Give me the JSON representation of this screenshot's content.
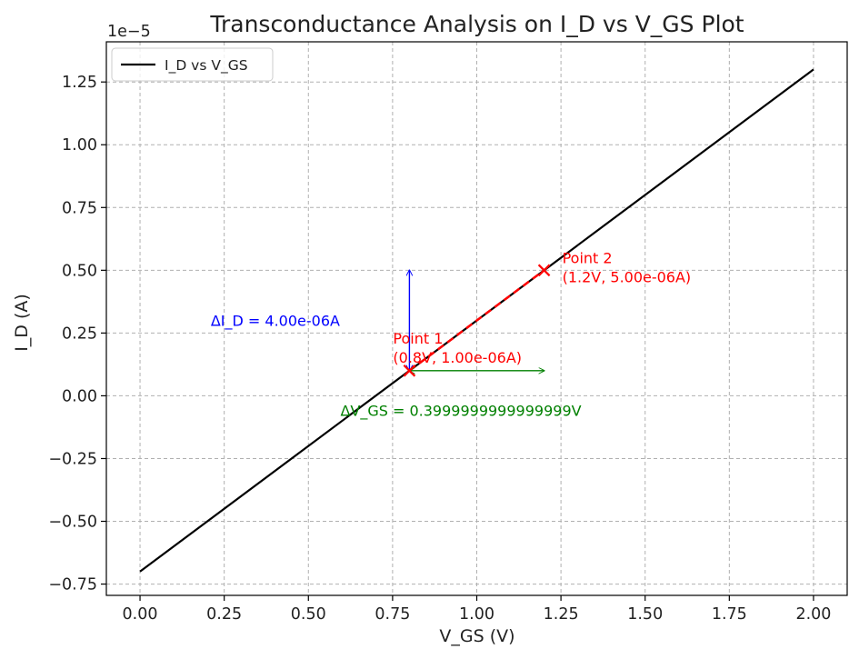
{
  "chart_data": {
    "type": "line",
    "title": "Transconductance Analysis on I_D vs V_GS Plot",
    "xlabel": "V_GS (V)",
    "ylabel": "I_D (A)",
    "y_offset_label": "1e−5",
    "xlim": [
      -0.1,
      2.1
    ],
    "ylim": [
      -7.95e-06,
      1.41e-05
    ],
    "x_ticks": [
      0.0,
      0.25,
      0.5,
      0.75,
      1.0,
      1.25,
      1.5,
      1.75,
      2.0
    ],
    "x_tick_labels": [
      "0.00",
      "0.25",
      "0.50",
      "0.75",
      "1.00",
      "1.25",
      "1.50",
      "1.75",
      "2.00"
    ],
    "y_ticks": [
      -7.5e-06,
      -5e-06,
      -2.5e-06,
      0,
      2.5e-06,
      5e-06,
      7.5e-06,
      1e-05,
      1.25e-05
    ],
    "y_tick_labels": [
      "−0.75",
      "−0.50",
      "−0.25",
      "0.00",
      "0.25",
      "0.50",
      "0.75",
      "1.00",
      "1.25"
    ],
    "grid": true,
    "legend_position": "top-left",
    "series": [
      {
        "name": "I_D vs V_GS",
        "color": "#000000",
        "x": [
          0.0,
          2.0
        ],
        "y": [
          -7e-06,
          1.3e-05
        ]
      }
    ],
    "points": [
      {
        "label": "Point 1",
        "coords": "(0.8V, 1.00e-06A)",
        "x": 0.8,
        "y": 1e-06,
        "color": "#ff0000"
      },
      {
        "label": "Point 2",
        "coords": "(1.2V, 5.00e-06A)",
        "x": 1.2,
        "y": 5e-06,
        "color": "#ff0000"
      }
    ],
    "secant": {
      "x": [
        0.8,
        1.2
      ],
      "y": [
        1e-06,
        5e-06
      ],
      "color": "#ff0000",
      "style": "dashed"
    },
    "delta_id": {
      "text": "ΔI_D = 4.00e-06A",
      "x": 0.8,
      "y_from": 1e-06,
      "y_to": 5e-06,
      "color": "#0000ff"
    },
    "delta_vgs": {
      "text": "ΔV_GS = 0.3999999999999999V",
      "y": 1e-06,
      "x_from": 0.8,
      "x_to": 1.2,
      "color": "#008000"
    }
  }
}
